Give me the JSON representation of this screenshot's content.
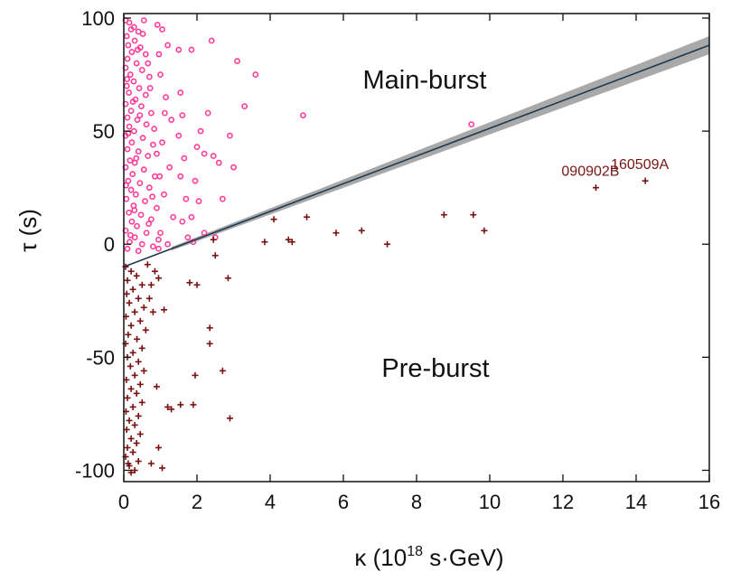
{
  "chart_data": {
    "type": "scatter",
    "xlabel_parts": {
      "prefix": "κ (10",
      "exponent": "18",
      "suffix": " s·GeV)"
    },
    "ylabel": "τ (s)",
    "xlim": [
      0,
      16
    ],
    "ylim": [
      -105,
      102
    ],
    "x_ticks": [
      0,
      2,
      4,
      6,
      8,
      10,
      12,
      14,
      16
    ],
    "y_ticks": [
      -100,
      -50,
      0,
      50,
      100
    ],
    "region_labels": {
      "upper": "Main-burst",
      "lower": "Pre-burst"
    },
    "fit_line": {
      "x": [
        0,
        16
      ],
      "y": [
        -10,
        88
      ],
      "band_halfwidth": [
        0.5,
        4
      ]
    },
    "colors": {
      "main_burst": "#ff3d9a",
      "pre_burst": "#7a1010",
      "fit_line": "#1f3a4f",
      "band": "#a9a9a9"
    },
    "main_burst_points": [
      [
        0.05,
        99
      ],
      [
        0.15,
        98
      ],
      [
        0.28,
        96
      ],
      [
        0.4,
        94
      ],
      [
        0.55,
        99
      ],
      [
        0.08,
        92
      ],
      [
        0.3,
        90
      ],
      [
        0.12,
        88
      ],
      [
        0.45,
        87
      ],
      [
        0.22,
        85
      ],
      [
        0.6,
        84
      ],
      [
        0.1,
        82
      ],
      [
        0.35,
        80
      ],
      [
        0.05,
        78
      ],
      [
        0.5,
        77
      ],
      [
        0.18,
        75
      ],
      [
        0.7,
        74
      ],
      [
        0.27,
        72
      ],
      [
        0.08,
        70
      ],
      [
        0.42,
        69
      ],
      [
        0.14,
        67
      ],
      [
        0.6,
        66
      ],
      [
        0.32,
        64
      ],
      [
        0.05,
        62
      ],
      [
        0.48,
        61
      ],
      [
        0.2,
        59
      ],
      [
        0.75,
        58
      ],
      [
        0.1,
        56
      ],
      [
        0.37,
        55
      ],
      [
        0.62,
        53
      ],
      [
        0.15,
        52
      ],
      [
        0.28,
        50
      ],
      [
        0.05,
        48
      ],
      [
        0.52,
        47
      ],
      [
        0.22,
        45
      ],
      [
        0.8,
        44
      ],
      [
        0.1,
        42
      ],
      [
        0.4,
        41
      ],
      [
        0.66,
        39
      ],
      [
        0.17,
        37
      ],
      [
        0.3,
        36
      ],
      [
        0.05,
        34
      ],
      [
        0.55,
        33
      ],
      [
        0.24,
        31
      ],
      [
        0.85,
        30
      ],
      [
        0.12,
        28
      ],
      [
        0.44,
        27
      ],
      [
        0.7,
        25
      ],
      [
        0.2,
        24
      ],
      [
        0.33,
        22
      ],
      [
        0.07,
        20
      ],
      [
        0.58,
        19
      ],
      [
        0.27,
        17
      ],
      [
        0.9,
        16
      ],
      [
        0.14,
        14
      ],
      [
        0.47,
        13
      ],
      [
        0.75,
        11
      ],
      [
        0.22,
        10
      ],
      [
        0.36,
        8
      ],
      [
        0.05,
        6
      ],
      [
        0.62,
        5
      ],
      [
        0.3,
        3
      ],
      [
        0.95,
        2
      ],
      [
        0.16,
        1
      ],
      [
        0.5,
        0
      ],
      [
        0.8,
        -1
      ],
      [
        0.1,
        -2
      ],
      [
        0.4,
        -3
      ],
      [
        0.2,
        95
      ],
      [
        0.38,
        86
      ],
      [
        0.09,
        73
      ],
      [
        0.25,
        63
      ],
      [
        0.44,
        57
      ],
      [
        0.12,
        49
      ],
      [
        0.34,
        38
      ],
      [
        0.06,
        26
      ],
      [
        0.29,
        15
      ],
      [
        0.18,
        4
      ],
      [
        0.52,
        93
      ],
      [
        0.66,
        80
      ],
      [
        0.72,
        69
      ],
      [
        0.83,
        51
      ],
      [
        0.9,
        40
      ],
      [
        0.78,
        21
      ],
      [
        0.68,
        9
      ],
      [
        0.95,
        -2
      ],
      [
        0.92,
        97
      ],
      [
        1.05,
        95
      ],
      [
        1.2,
        88
      ],
      [
        1.0,
        75
      ],
      [
        1.15,
        65
      ],
      [
        1.3,
        55
      ],
      [
        1.05,
        45
      ],
      [
        1.25,
        34
      ],
      [
        1.1,
        22
      ],
      [
        1.35,
        12
      ],
      [
        1.0,
        5
      ],
      [
        1.2,
        0
      ],
      [
        0.98,
        30
      ],
      [
        1.12,
        58
      ],
      [
        0.96,
        84
      ],
      [
        1.5,
        86
      ],
      [
        1.55,
        67
      ],
      [
        1.6,
        57
      ],
      [
        1.5,
        48
      ],
      [
        1.65,
        38
      ],
      [
        1.55,
        30
      ],
      [
        1.7,
        20
      ],
      [
        1.6,
        10
      ],
      [
        1.75,
        3
      ],
      [
        1.9,
        1
      ],
      [
        1.85,
        86
      ],
      [
        2.0,
        43
      ],
      [
        2.1,
        50
      ],
      [
        1.95,
        28
      ],
      [
        2.05,
        19
      ],
      [
        2.2,
        5
      ],
      [
        1.85,
        12
      ],
      [
        2.3,
        58
      ],
      [
        2.4,
        90
      ],
      [
        2.45,
        39
      ],
      [
        2.6,
        36
      ],
      [
        2.7,
        20
      ],
      [
        2.2,
        40
      ],
      [
        3.1,
        81
      ],
      [
        3.3,
        61
      ],
      [
        3.6,
        75
      ],
      [
        2.9,
        48
      ],
      [
        3.0,
        34
      ],
      [
        4.9,
        57
      ],
      [
        9.5,
        53
      ],
      [
        2.5,
        3
      ]
    ],
    "pre_burst_points": [
      [
        0.05,
        -10
      ],
      [
        0.2,
        -12
      ],
      [
        0.35,
        -14
      ],
      [
        0.1,
        -16
      ],
      [
        0.5,
        -18
      ],
      [
        0.25,
        -20
      ],
      [
        0.08,
        -22
      ],
      [
        0.4,
        -24
      ],
      [
        0.15,
        -26
      ],
      [
        0.55,
        -28
      ],
      [
        0.3,
        -30
      ],
      [
        0.06,
        -32
      ],
      [
        0.45,
        -34
      ],
      [
        0.2,
        -36
      ],
      [
        0.6,
        -38
      ],
      [
        0.12,
        -40
      ],
      [
        0.36,
        -42
      ],
      [
        0.05,
        -44
      ],
      [
        0.5,
        -46
      ],
      [
        0.25,
        -48
      ],
      [
        0.1,
        -50
      ],
      [
        0.4,
        -52
      ],
      [
        0.18,
        -54
      ],
      [
        0.55,
        -56
      ],
      [
        0.3,
        -58
      ],
      [
        0.07,
        -60
      ],
      [
        0.45,
        -62
      ],
      [
        0.2,
        -64
      ],
      [
        0.35,
        -66
      ],
      [
        0.1,
        -68
      ],
      [
        0.5,
        -70
      ],
      [
        0.25,
        -72
      ],
      [
        0.06,
        -74
      ],
      [
        0.4,
        -76
      ],
      [
        0.15,
        -78
      ],
      [
        0.3,
        -80
      ],
      [
        0.08,
        -82
      ],
      [
        0.45,
        -84
      ],
      [
        0.2,
        -86
      ],
      [
        0.35,
        -88
      ],
      [
        0.1,
        -90
      ],
      [
        0.25,
        -92
      ],
      [
        0.05,
        -94
      ],
      [
        0.4,
        -96
      ],
      [
        0.15,
        -98
      ],
      [
        0.3,
        -100
      ],
      [
        0.2,
        -101
      ],
      [
        0.12,
        -97
      ],
      [
        0.65,
        -9
      ],
      [
        0.75,
        -18
      ],
      [
        0.7,
        -24
      ],
      [
        0.85,
        -12
      ],
      [
        0.8,
        -30
      ],
      [
        0.95,
        -15
      ],
      [
        1.1,
        -29
      ],
      [
        0.9,
        -63
      ],
      [
        1.2,
        -72
      ],
      [
        1.05,
        -99
      ],
      [
        0.75,
        -97
      ],
      [
        0.95,
        -90
      ],
      [
        1.3,
        -73
      ],
      [
        1.55,
        -71
      ],
      [
        1.8,
        -17
      ],
      [
        2.0,
        -18
      ],
      [
        1.95,
        -58
      ],
      [
        1.9,
        -71
      ],
      [
        2.35,
        -37
      ],
      [
        2.35,
        -44
      ],
      [
        2.7,
        -56
      ],
      [
        2.9,
        -77
      ],
      [
        2.85,
        -15
      ],
      [
        2.45,
        2
      ],
      [
        2.5,
        -5
      ],
      [
        3.85,
        1
      ],
      [
        4.1,
        11
      ],
      [
        4.5,
        2
      ],
      [
        4.6,
        1
      ],
      [
        5.0,
        12
      ],
      [
        5.8,
        5
      ],
      [
        6.5,
        6
      ],
      [
        7.2,
        0
      ],
      [
        8.75,
        13
      ],
      [
        9.55,
        13
      ],
      [
        9.85,
        6
      ],
      [
        12.9,
        25
      ],
      [
        14.25,
        28
      ]
    ],
    "annotations": [
      {
        "text": "090902B",
        "x": 12.9,
        "y": 25
      },
      {
        "text": "160509A",
        "x": 14.25,
        "y": 28
      }
    ]
  }
}
